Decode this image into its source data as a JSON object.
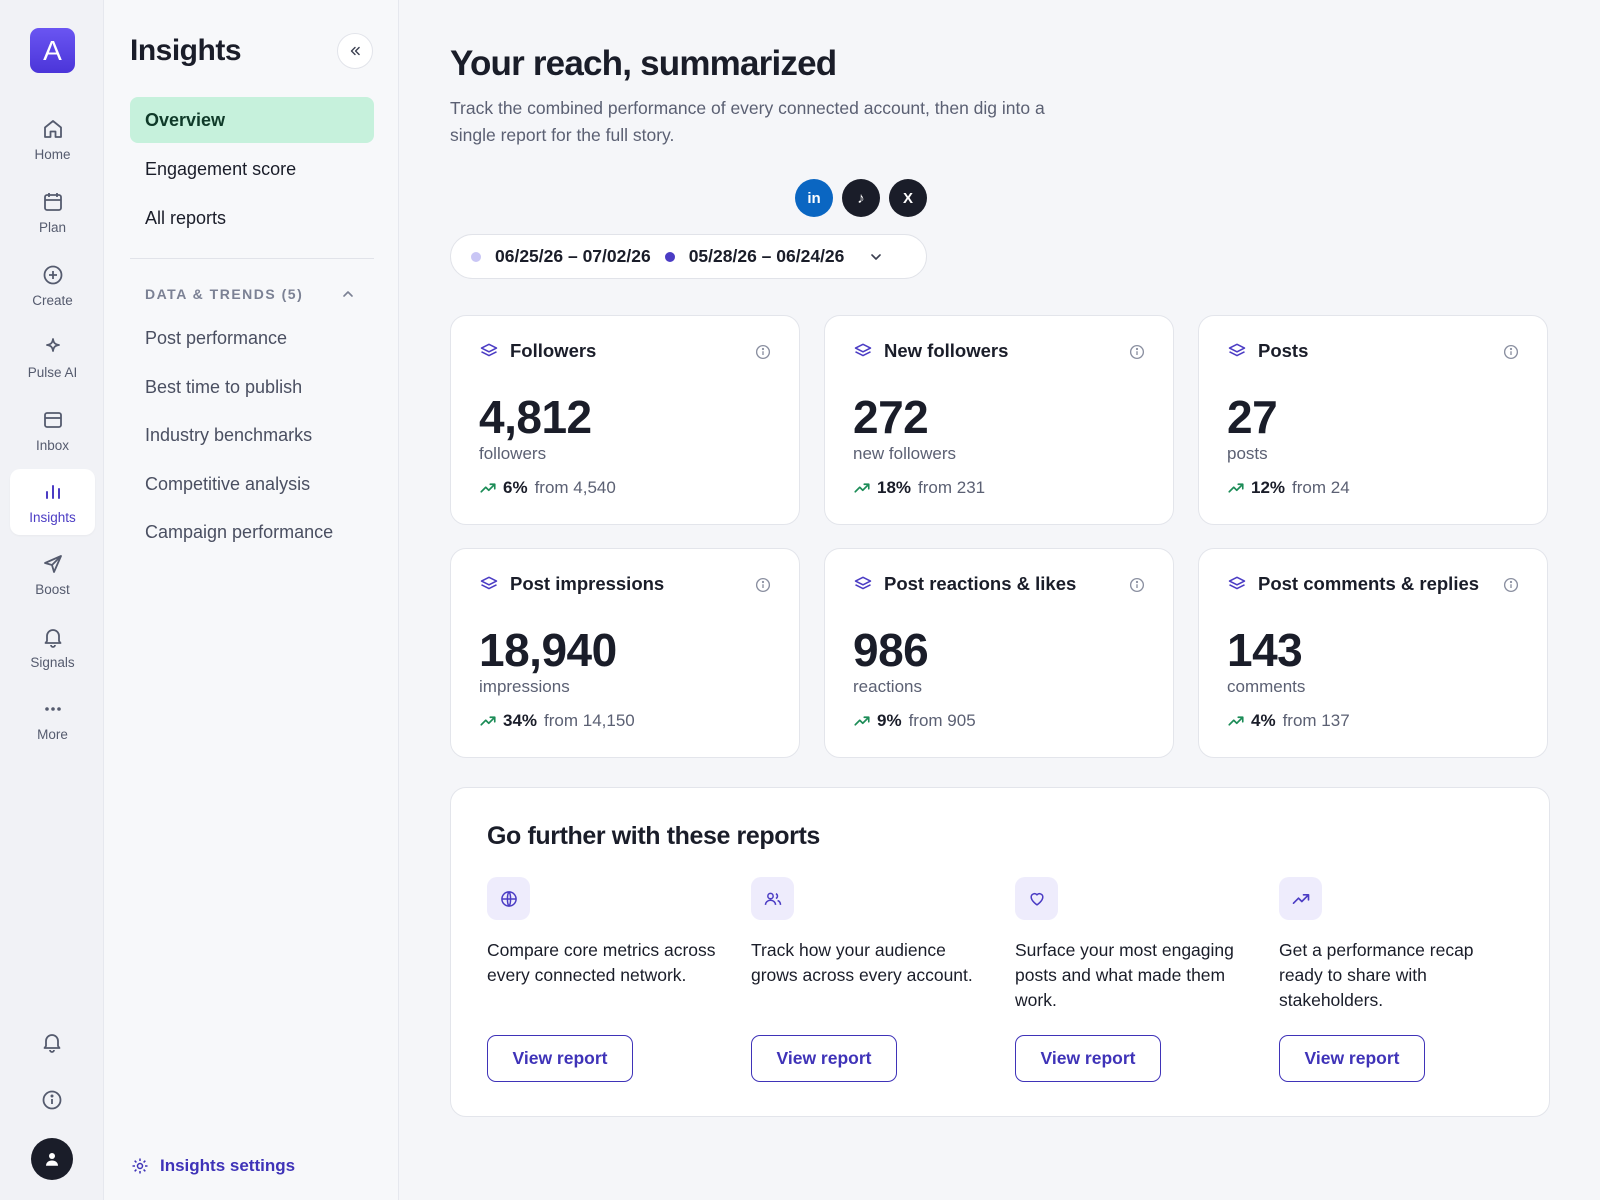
{
  "rail": {
    "logo_letter": "A",
    "items": [
      {
        "label": "Home",
        "icon": "home-icon"
      },
      {
        "label": "Plan",
        "icon": "calendar-icon"
      },
      {
        "label": "Create",
        "icon": "plus-circle-icon"
      },
      {
        "label": "Pulse AI",
        "icon": "sparkle-icon"
      },
      {
        "label": "Inbox",
        "icon": "inbox-icon"
      },
      {
        "label": "Insights",
        "icon": "bar-chart-icon",
        "active": true
      },
      {
        "label": "Boost",
        "icon": "send-icon"
      },
      {
        "label": "Signals",
        "icon": "bell-icon"
      },
      {
        "label": "More",
        "icon": "more-icon"
      }
    ]
  },
  "sidebar": {
    "title": "Insights",
    "nav": [
      {
        "label": "Overview",
        "active": true
      },
      {
        "label": "Engagement score"
      },
      {
        "label": "All reports"
      }
    ],
    "section": {
      "label": "DATA & TRENDS (5)",
      "items": [
        "Post performance",
        "Best time to publish",
        "Industry benchmarks",
        "Competitive analysis",
        "Campaign performance"
      ]
    },
    "settings_label": "Insights settings"
  },
  "header": {
    "title": "Your reach, summarized",
    "subtitle": "Track the combined performance of every connected account, then dig into a single report for the full story."
  },
  "networks": [
    {
      "name": "linkedin",
      "glyph": "in",
      "color": "#0a66c2"
    },
    {
      "name": "tiktok",
      "glyph": "♪",
      "color": "#1a1d29"
    },
    {
      "name": "x",
      "glyph": "X",
      "color": "#1a1d29"
    }
  ],
  "date_range": {
    "current": "06/25/26 – 07/02/26",
    "previous": "05/28/26 – 06/24/26",
    "current_color": "#c9c6f5",
    "previous_color": "#4b3cc4"
  },
  "metrics": [
    {
      "title": "Followers",
      "value": "4,812",
      "unit": "followers",
      "change": "6%",
      "from": "from 4,540"
    },
    {
      "title": "New followers",
      "value": "272",
      "unit": "new followers",
      "change": "18%",
      "from": "from 231"
    },
    {
      "title": "Posts",
      "value": "27",
      "unit": "posts",
      "change": "12%",
      "from": "from 24"
    },
    {
      "title": "Post impressions",
      "value": "18,940",
      "unit": "impressions",
      "change": "34%",
      "from": "from 14,150"
    },
    {
      "title": "Post reactions & likes",
      "value": "986",
      "unit": "reactions",
      "change": "9%",
      "from": "from 905"
    },
    {
      "title": "Post comments & replies",
      "value": "143",
      "unit": "comments",
      "change": "4%",
      "from": "from 137"
    }
  ],
  "reports": {
    "title": "Go further with these reports",
    "items": [
      {
        "icon": "globe-icon",
        "text": "Compare core metrics across every connected network.",
        "button": "View report"
      },
      {
        "icon": "users-icon",
        "text": "Track how your audience grows across every account.",
        "button": "View report"
      },
      {
        "icon": "heart-icon",
        "text": "Surface your most engaging posts and what made them work.",
        "button": "View report"
      },
      {
        "icon": "trend-up-icon",
        "text": "Get a performance recap ready to share with stakeholders.",
        "button": "View report"
      }
    ]
  },
  "colors": {
    "accent": "#4b3cc4",
    "active_nav": "#c6f1dc",
    "trend_up": "#1c8c57"
  }
}
